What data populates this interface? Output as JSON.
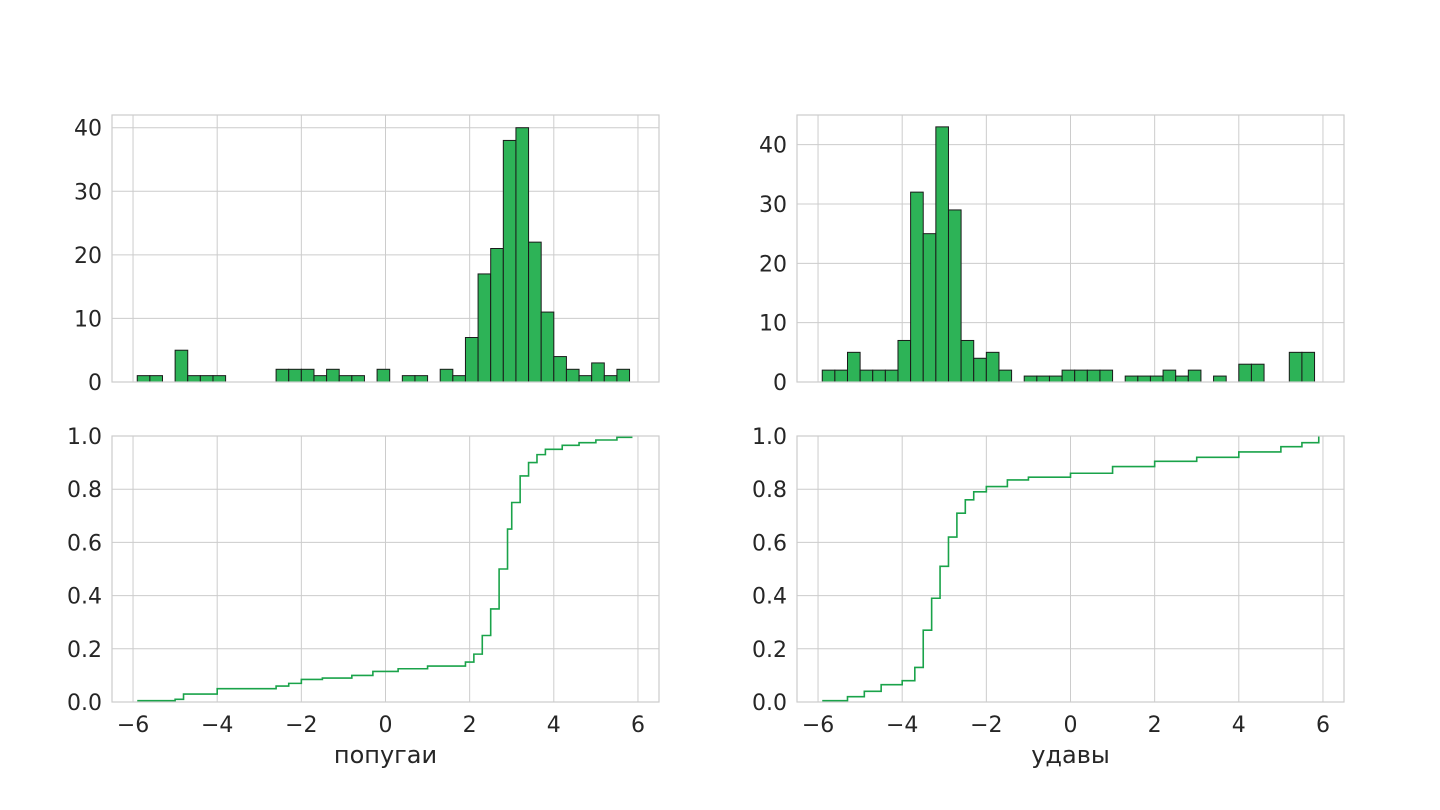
{
  "colors": {
    "bar_fill": "#2db357",
    "bar_edge": "#1a1a1a",
    "line": "#1aa34a",
    "grid": "#cccccc",
    "frame": "#cccccc",
    "text": "#262626"
  },
  "chart_data": [
    {
      "type": "bar",
      "panel": "histogram-left",
      "bin_width": 0.3,
      "x_bin_starts": [
        -5.9,
        -5.6,
        -5.0,
        -4.7,
        -4.4,
        -4.1,
        -2.6,
        -2.3,
        -2.0,
        -1.7,
        -1.4,
        -1.1,
        -0.8,
        -0.2,
        0.4,
        0.7,
        1.3,
        1.6,
        1.9,
        2.2,
        2.5,
        2.8,
        3.1,
        3.4,
        3.7,
        4.0,
        4.3,
        4.6,
        4.9,
        5.2,
        5.5
      ],
      "values": [
        1,
        1,
        5,
        1,
        1,
        1,
        2,
        2,
        2,
        1,
        2,
        1,
        1,
        2,
        1,
        1,
        2,
        1,
        7,
        17,
        21,
        38,
        40,
        22,
        11,
        4,
        2,
        1,
        3,
        1,
        2
      ],
      "xlim": [
        -6.5,
        6.5
      ],
      "ylim": [
        0,
        42
      ],
      "xticks": [
        -6,
        -4,
        -2,
        0,
        2,
        4,
        6
      ],
      "yticks": [
        0,
        10,
        20,
        30,
        40
      ],
      "ytick_labels": [
        "0",
        "10",
        "20",
        "30",
        "40"
      ],
      "grid": true
    },
    {
      "type": "line",
      "panel": "ecdf-left",
      "step": true,
      "x": [
        -5.9,
        -5.0,
        -4.8,
        -4.0,
        -3.0,
        -2.6,
        -2.3,
        -2.0,
        -1.5,
        -0.8,
        -0.3,
        0.3,
        1.0,
        1.9,
        2.1,
        2.3,
        2.5,
        2.7,
        2.9,
        3.0,
        3.2,
        3.4,
        3.6,
        3.8,
        4.2,
        4.6,
        5.0,
        5.5,
        5.85
      ],
      "y": [
        0.005,
        0.01,
        0.03,
        0.05,
        0.05,
        0.06,
        0.07,
        0.085,
        0.09,
        0.1,
        0.115,
        0.125,
        0.135,
        0.15,
        0.18,
        0.25,
        0.35,
        0.5,
        0.65,
        0.75,
        0.85,
        0.9,
        0.93,
        0.95,
        0.965,
        0.975,
        0.985,
        0.995,
        1.0
      ],
      "xlim": [
        -6.5,
        6.5
      ],
      "ylim": [
        0,
        1
      ],
      "xticks": [
        -6,
        -4,
        -2,
        0,
        2,
        4,
        6
      ],
      "xtick_labels": [
        "−6",
        "−4",
        "−2",
        "0",
        "2",
        "4",
        "6"
      ],
      "yticks": [
        0,
        0.2,
        0.4,
        0.6,
        0.8,
        1.0
      ],
      "ytick_labels": [
        "0.0",
        "0.2",
        "0.4",
        "0.6",
        "0.8",
        "1.0"
      ],
      "xlabel": "попугаи",
      "grid": true
    },
    {
      "type": "bar",
      "panel": "histogram-right",
      "bin_width": 0.3,
      "x_bin_starts": [
        -5.9,
        -5.6,
        -5.3,
        -5.0,
        -4.7,
        -4.4,
        -4.1,
        -3.8,
        -3.5,
        -3.2,
        -2.9,
        -2.6,
        -2.3,
        -2.0,
        -1.7,
        -1.1,
        -0.8,
        -0.5,
        -0.2,
        0.1,
        0.4,
        0.7,
        1.3,
        1.6,
        1.9,
        2.2,
        2.5,
        2.8,
        3.4,
        4.0,
        4.3,
        5.2,
        5.5
      ],
      "values": [
        2,
        2,
        5,
        2,
        2,
        2,
        7,
        32,
        25,
        43,
        29,
        7,
        4,
        5,
        2,
        1,
        1,
        1,
        2,
        2,
        2,
        2,
        1,
        1,
        1,
        2,
        1,
        2,
        1,
        3,
        3,
        5,
        5
      ],
      "xlim": [
        -6.5,
        6.5
      ],
      "ylim": [
        0,
        45
      ],
      "xticks": [
        -6,
        -4,
        -2,
        0,
        2,
        4,
        6
      ],
      "yticks": [
        0,
        10,
        20,
        30,
        40
      ],
      "ytick_labels": [
        "0",
        "10",
        "20",
        "30",
        "40"
      ],
      "grid": true
    },
    {
      "type": "line",
      "panel": "ecdf-right",
      "step": true,
      "x": [
        -5.9,
        -5.3,
        -4.9,
        -4.5,
        -4.0,
        -3.7,
        -3.5,
        -3.3,
        -3.1,
        -2.9,
        -2.7,
        -2.5,
        -2.3,
        -2.0,
        -1.5,
        -1.0,
        0.0,
        1.0,
        2.0,
        3.0,
        4.0,
        5.0,
        5.5,
        5.9
      ],
      "y": [
        0.005,
        0.02,
        0.04,
        0.065,
        0.08,
        0.13,
        0.27,
        0.39,
        0.51,
        0.62,
        0.71,
        0.76,
        0.79,
        0.81,
        0.835,
        0.845,
        0.86,
        0.885,
        0.905,
        0.92,
        0.94,
        0.96,
        0.975,
        1.0
      ],
      "xlim": [
        -6.5,
        6.5
      ],
      "ylim": [
        0,
        1
      ],
      "xticks": [
        -6,
        -4,
        -2,
        0,
        2,
        4,
        6
      ],
      "xtick_labels": [
        "−6",
        "−4",
        "−2",
        "0",
        "2",
        "4",
        "6"
      ],
      "yticks": [
        0,
        0.2,
        0.4,
        0.6,
        0.8,
        1.0
      ],
      "ytick_labels": [
        "0.0",
        "0.2",
        "0.4",
        "0.6",
        "0.8",
        "1.0"
      ],
      "xlabel": "удавы",
      "grid": true
    }
  ]
}
